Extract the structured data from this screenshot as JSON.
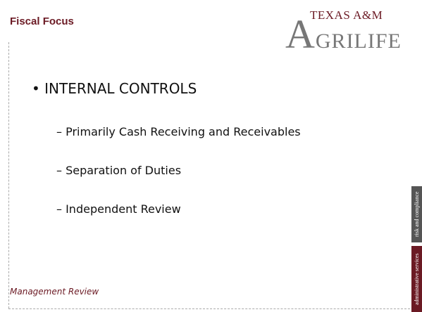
{
  "header": {
    "title": "Fiscal Focus",
    "logo_top": "TEXAS A&M",
    "logo_main": "AGRILIFE"
  },
  "content": {
    "bullet": "• INTERNAL CONTROLS",
    "items": [
      "– Primarily Cash Receiving and Receivables",
      "– Separation of Duties",
      "– Independent Review"
    ]
  },
  "footer": {
    "text": "Management Review"
  },
  "side_tabs": [
    "risk and compliance",
    "administrative services"
  ]
}
